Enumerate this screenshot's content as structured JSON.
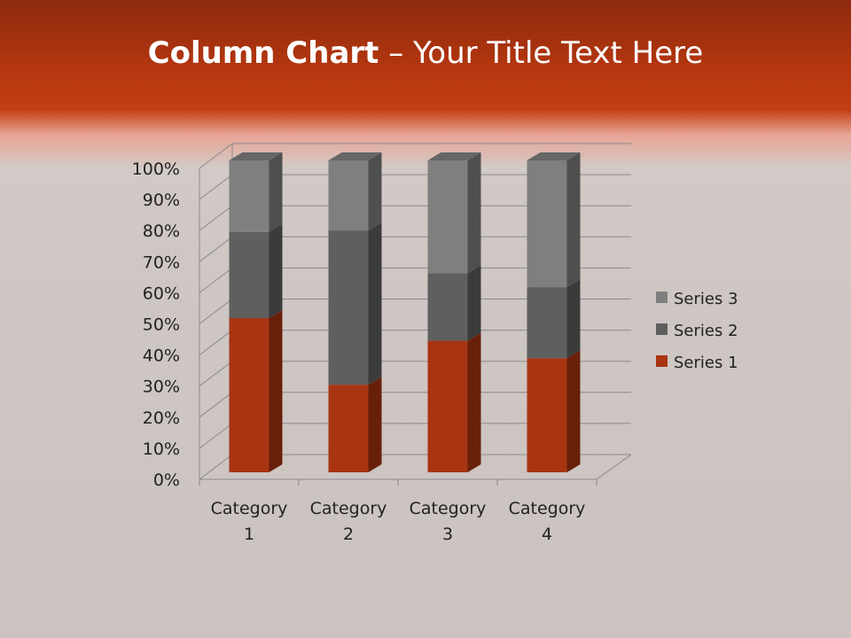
{
  "slide": {
    "title_bold": "Column Chart",
    "title_rest": " – Your Title Text Here"
  },
  "chart_data": {
    "type": "bar",
    "stacking": "percent",
    "style": "3d-column",
    "categories": [
      "Category 1",
      "Category 2",
      "Category 3",
      "Category 4"
    ],
    "category_lines": [
      [
        "Category",
        "1"
      ],
      [
        "Category",
        "2"
      ],
      [
        "Category",
        "3"
      ],
      [
        "Category",
        "4"
      ]
    ],
    "series": [
      {
        "name": "Series 1",
        "values": [
          4.3,
          2.5,
          3.5,
          4.5
        ],
        "color": "#a83412"
      },
      {
        "name": "Series 2",
        "values": [
          2.4,
          4.4,
          1.8,
          2.8
        ],
        "color": "#5f5f5f"
      },
      {
        "name": "Series 3",
        "values": [
          2,
          2,
          3,
          5
        ],
        "color": "#7f7f7f"
      }
    ],
    "yticks": [
      "0%",
      "10%",
      "20%",
      "30%",
      "40%",
      "50%",
      "60%",
      "70%",
      "80%",
      "90%",
      "100%"
    ],
    "ylim": [
      0,
      100
    ],
    "grid": true,
    "legend": "right"
  }
}
